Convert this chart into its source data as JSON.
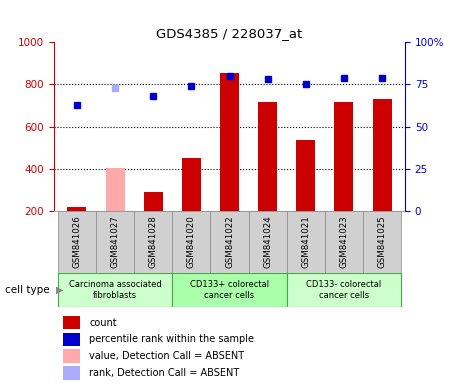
{
  "title": "GDS4385 / 228037_at",
  "samples": [
    "GSM841026",
    "GSM841027",
    "GSM841028",
    "GSM841020",
    "GSM841022",
    "GSM841024",
    "GSM841021",
    "GSM841023",
    "GSM841025"
  ],
  "count_values": [
    220,
    null,
    290,
    450,
    855,
    715,
    535,
    715,
    730
  ],
  "count_absent_values": [
    null,
    405,
    null,
    null,
    null,
    null,
    null,
    null,
    null
  ],
  "rank_values": [
    63,
    null,
    68,
    74,
    80,
    78,
    75,
    79,
    79
  ],
  "rank_absent_values": [
    null,
    73,
    null,
    null,
    null,
    null,
    null,
    null,
    null
  ],
  "ylim_left": [
    200,
    1000
  ],
  "ylim_right": [
    0,
    100
  ],
  "yticks_left": [
    200,
    400,
    600,
    800,
    1000
  ],
  "ytick_labels_right": [
    "0",
    "25",
    "50",
    "75",
    "100%"
  ],
  "yticks_right": [
    0,
    25,
    50,
    75,
    100
  ],
  "groups": [
    {
      "label": "Carcinoma associated\nfibroblasts",
      "start": 0,
      "end": 2,
      "color": "#ccffcc"
    },
    {
      "label": "CD133+ colorectal\ncancer cells",
      "start": 3,
      "end": 5,
      "color": "#aaffaa"
    },
    {
      "label": "CD133- colorectal\ncancer cells",
      "start": 6,
      "end": 8,
      "color": "#ccffcc"
    }
  ],
  "bar_color_present": "#cc0000",
  "bar_color_absent": "#ffaaaa",
  "dot_color_present": "#0000cc",
  "dot_color_absent": "#aaaaff",
  "bar_width": 0.5,
  "axis_color_left": "#cc0000",
  "axis_color_right": "#0000cc",
  "cell_type_label": "cell type",
  "legend_items": [
    {
      "label": "count",
      "color": "#cc0000"
    },
    {
      "label": "percentile rank within the sample",
      "color": "#0000cc"
    },
    {
      "label": "value, Detection Call = ABSENT",
      "color": "#ffaaaa"
    },
    {
      "label": "rank, Detection Call = ABSENT",
      "color": "#aaaaff"
    }
  ],
  "sample_box_color": "#d0d0d0",
  "plot_bg": "#ffffff",
  "grid_dotted_at": [
    400,
    600,
    800
  ]
}
